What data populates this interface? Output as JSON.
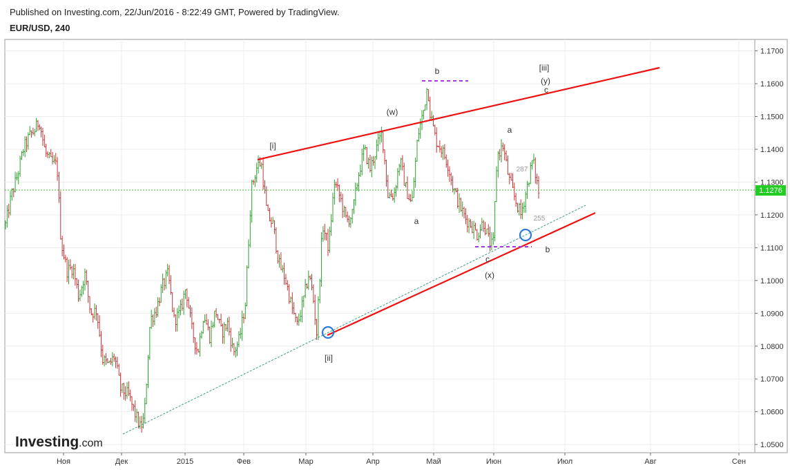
{
  "header": {
    "published": "Published on Investing.com, 22/Jun/2016 - 8:22:49 GMT, Powered by TradingView.",
    "symbol": "EUR/USD, 240"
  },
  "logo": {
    "main": "Investing",
    "suffix": ".com"
  },
  "colors": {
    "up": "#2ca02c",
    "down": "#c83232",
    "trendline": "#ee1111",
    "channel": "#3a9a8a",
    "marker": "#a933e8",
    "price_line": "#33bb33",
    "price_badge": "#22cc22",
    "circle": "#2a7bd4"
  },
  "chart_data": {
    "type": "line",
    "series_style": "ohlc-bars",
    "x_axis": {
      "ticks": [
        "Ноя",
        "Дек",
        "2015",
        "Фев",
        "Мар",
        "Апр",
        "Май",
        "Июн",
        "Июл",
        "Авг",
        "Сен"
      ]
    },
    "y_axis": {
      "ticks": [
        "1.0500",
        "1.0600",
        "1.0700",
        "1.0800",
        "1.0900",
        "1.1000",
        "1.1100",
        "1.1200",
        "1.1300",
        "1.1400",
        "1.1500",
        "1.1600",
        "1.1700"
      ],
      "range": [
        1.0475,
        1.1735
      ]
    },
    "grid": true,
    "current_price": "1.1276",
    "price_path": [
      [
        0,
        1.117
      ],
      [
        3,
        1.126
      ],
      [
        6,
        1.132
      ],
      [
        9,
        1.14
      ],
      [
        12,
        1.144
      ],
      [
        15,
        1.146
      ],
      [
        17,
        1.149
      ],
      [
        20,
        1.139
      ],
      [
        23,
        1.136
      ],
      [
        26,
        1.135
      ],
      [
        28,
        1.112
      ],
      [
        31,
        1.103
      ],
      [
        34,
        1.104
      ],
      [
        37,
        1.095
      ],
      [
        40,
        1.102
      ],
      [
        43,
        1.09
      ],
      [
        46,
        1.091
      ],
      [
        49,
        1.076
      ],
      [
        52,
        1.074
      ],
      [
        55,
        1.077
      ],
      [
        58,
        1.067
      ],
      [
        62,
        1.065
      ],
      [
        65,
        1.06
      ],
      [
        68,
        1.055
      ],
      [
        70,
        1.058
      ],
      [
        73,
        1.088
      ],
      [
        76,
        1.091
      ],
      [
        79,
        1.098
      ],
      [
        82,
        1.102
      ],
      [
        85,
        1.088
      ],
      [
        88,
        1.09
      ],
      [
        91,
        1.098
      ],
      [
        94,
        1.085
      ],
      [
        97,
        1.078
      ],
      [
        100,
        1.09
      ],
      [
        103,
        1.083
      ],
      [
        106,
        1.091
      ],
      [
        109,
        1.084
      ],
      [
        112,
        1.087
      ],
      [
        115,
        1.078
      ],
      [
        118,
        1.082
      ],
      [
        121,
        1.093
      ],
      [
        124,
        1.128
      ],
      [
        127,
        1.135
      ],
      [
        129,
        1.136
      ],
      [
        132,
        1.12
      ],
      [
        135,
        1.117
      ],
      [
        138,
        1.105
      ],
      [
        141,
        1.101
      ],
      [
        144,
        1.093
      ],
      [
        147,
        1.086
      ],
      [
        150,
        1.093
      ],
      [
        153,
        1.102
      ],
      [
        155,
        1.096
      ],
      [
        157,
        1.084
      ],
      [
        160,
        1.117
      ],
      [
        163,
        1.11
      ],
      [
        166,
        1.13
      ],
      [
        169,
        1.125
      ],
      [
        172,
        1.118
      ],
      [
        175,
        1.12
      ],
      [
        178,
        1.132
      ],
      [
        181,
        1.14
      ],
      [
        184,
        1.134
      ],
      [
        187,
        1.14
      ],
      [
        190,
        1.145
      ],
      [
        193,
        1.126
      ],
      [
        196,
        1.126
      ],
      [
        199,
        1.137
      ],
      [
        202,
        1.128
      ],
      [
        205,
        1.123
      ],
      [
        208,
        1.144
      ],
      [
        211,
        1.152
      ],
      [
        213,
        1.16
      ],
      [
        214,
        1.152
      ],
      [
        217,
        1.143
      ],
      [
        220,
        1.14
      ],
      [
        223,
        1.136
      ],
      [
        226,
        1.128
      ],
      [
        229,
        1.123
      ],
      [
        232,
        1.119
      ],
      [
        235,
        1.117
      ],
      [
        238,
        1.114
      ],
      [
        241,
        1.118
      ],
      [
        244,
        1.112
      ],
      [
        246,
        1.11
      ],
      [
        248,
        1.138
      ],
      [
        251,
        1.141
      ],
      [
        254,
        1.131
      ],
      [
        257,
        1.125
      ],
      [
        260,
        1.12
      ],
      [
        263,
        1.128
      ],
      [
        266,
        1.137
      ],
      [
        269,
        1.127
      ]
    ],
    "path_x_range": [
      0,
      269
    ],
    "annotations": [
      "[i]",
      "[ii]",
      "(w)",
      "a",
      "b",
      "c",
      "(x)",
      "a",
      "b",
      "[iii]",
      "(y)",
      "c",
      "287",
      "255"
    ]
  }
}
